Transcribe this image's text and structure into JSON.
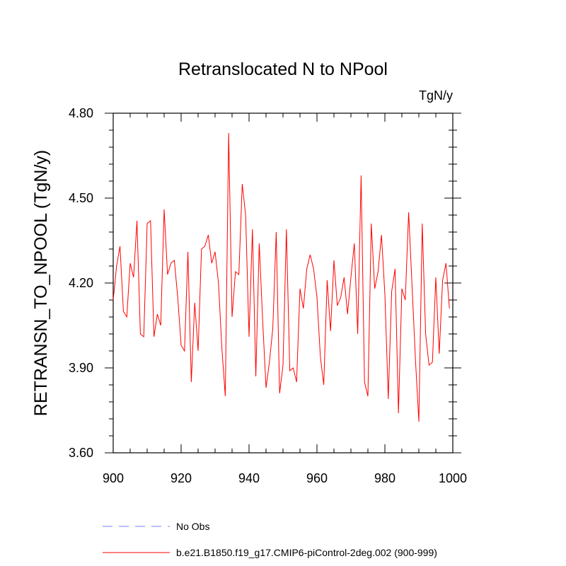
{
  "chart_data": {
    "type": "line",
    "title": "Retranslocated N to NPool",
    "units_label": "TgN/y",
    "ylabel": "RETRANSN_TO_NPOOL  (TgN/y)",
    "xlabel": "",
    "xlim": [
      900,
      1000
    ],
    "ylim": [
      3.6,
      4.8
    ],
    "x_ticks": [
      900,
      920,
      940,
      960,
      980,
      1000
    ],
    "x_tick_labels": [
      "900",
      "920",
      "940",
      "960",
      "980",
      "1000"
    ],
    "y_ticks": [
      3.6,
      3.9,
      4.2,
      4.5,
      4.8
    ],
    "y_tick_labels": [
      "3.60",
      "3.90",
      "4.20",
      "4.50",
      "4.80"
    ],
    "legend": [
      {
        "name": "No Obs",
        "color": "#7b7bff",
        "style": "dashed"
      },
      {
        "name": "b.e21.B1850.f19_g17.CMIP6-piControl-2deg.002 (900-999)",
        "color": "#ff0000",
        "style": "solid"
      }
    ],
    "series": [
      {
        "name": "b.e21.B1850.f19_g17.CMIP6-piControl-2deg.002 (900-999)",
        "color": "#ff0000",
        "x_start": 900,
        "x_step": 1,
        "values": [
          4.14,
          4.26,
          4.33,
          4.1,
          4.08,
          4.27,
          4.22,
          4.42,
          4.02,
          4.01,
          4.41,
          4.42,
          4.01,
          4.09,
          4.05,
          4.46,
          4.23,
          4.27,
          4.28,
          4.15,
          3.98,
          3.96,
          4.31,
          3.85,
          4.13,
          3.96,
          4.32,
          4.33,
          4.37,
          4.27,
          4.31,
          4.2,
          3.97,
          3.8,
          4.73,
          4.08,
          4.24,
          4.23,
          4.55,
          4.44,
          4.01,
          4.39,
          3.87,
          4.34,
          4.07,
          3.83,
          3.92,
          4.04,
          4.38,
          3.81,
          3.91,
          4.39,
          3.89,
          3.9,
          3.85,
          4.18,
          4.11,
          4.25,
          4.3,
          4.25,
          4.15,
          3.94,
          3.84,
          4.21,
          4.03,
          4.28,
          4.12,
          4.15,
          4.22,
          4.09,
          4.22,
          4.34,
          4.02,
          4.58,
          3.85,
          3.8,
          4.41,
          4.18,
          4.24,
          4.37,
          4.16,
          3.79,
          4.17,
          4.25,
          3.74,
          4.18,
          4.14,
          4.45,
          4.19,
          3.93,
          3.71,
          4.41,
          4.02,
          3.91,
          3.92,
          4.22,
          3.95,
          4.21,
          4.27,
          4.11
        ]
      }
    ]
  }
}
